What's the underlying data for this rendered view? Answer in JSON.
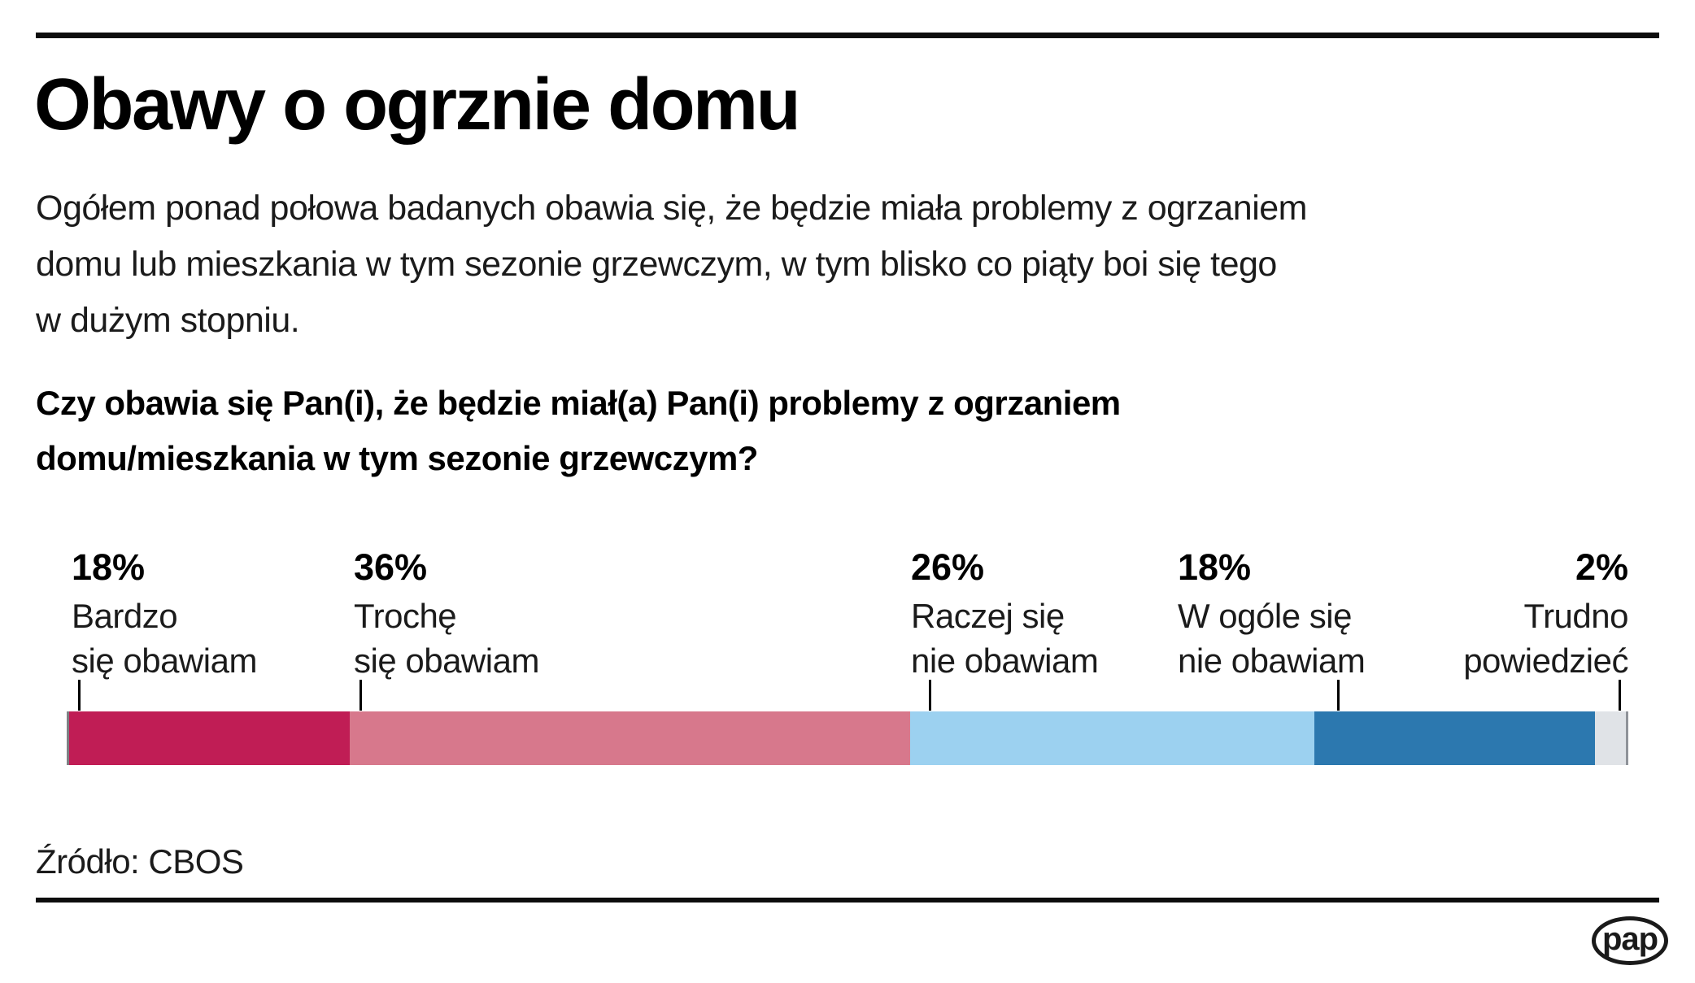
{
  "header": {
    "title": "Obawy o ogrznie domu"
  },
  "lede": {
    "lines": [
      "Ogółem ponad połowa badanych obawia się, że będzie miała problemy z ogrzaniem",
      "domu lub mieszkania w tym sezonie grzewczym, w tym blisko co piąty boi się tego",
      "w dużym stopniu."
    ]
  },
  "question": {
    "lines": [
      "Czy obawia się Pan(i), że będzie miał(a) Pan(i) problemy z ogrzaniem",
      "domu/mieszkania w tym sezonie grzewczym?"
    ]
  },
  "chart_data": {
    "type": "bar",
    "subtype": "horizontal-stacked-100",
    "title": "Czy obawia się Pan(i), że będzie miał(a) Pan(i) problemy z ogrzaniem domu/mieszkania w tym sezonie grzewczym?",
    "categories": [
      "Bardzo się obawiam",
      "Trochę się obawiam",
      "Raczej się nie obawiam",
      "W ogóle się nie obawiam",
      "Trudno powiedzieć"
    ],
    "values": [
      18,
      36,
      26,
      18,
      2
    ],
    "unit": "%",
    "xlim": [
      0,
      100
    ],
    "colors": [
      "#c01d55",
      "#d7788c",
      "#9cd1f0",
      "#2c78af",
      "#e0e3e7"
    ],
    "grid": false,
    "legend": "labels-above-bar"
  },
  "labels": [
    {
      "pct": "18%",
      "line1": "Bardzo",
      "line2": "się obawiam"
    },
    {
      "pct": "36%",
      "line1": "Trochę",
      "line2": "się obawiam"
    },
    {
      "pct": "26%",
      "line1": "Raczej się",
      "line2": "nie obawiam"
    },
    {
      "pct": "18%",
      "line1": "W ogóle się",
      "line2": "nie obawiam"
    },
    {
      "pct": "2%",
      "line1": "Trudno",
      "line2": "powiedzieć"
    }
  ],
  "source": {
    "label": "Źródło: CBOS"
  },
  "logo": {
    "text": "pap"
  }
}
